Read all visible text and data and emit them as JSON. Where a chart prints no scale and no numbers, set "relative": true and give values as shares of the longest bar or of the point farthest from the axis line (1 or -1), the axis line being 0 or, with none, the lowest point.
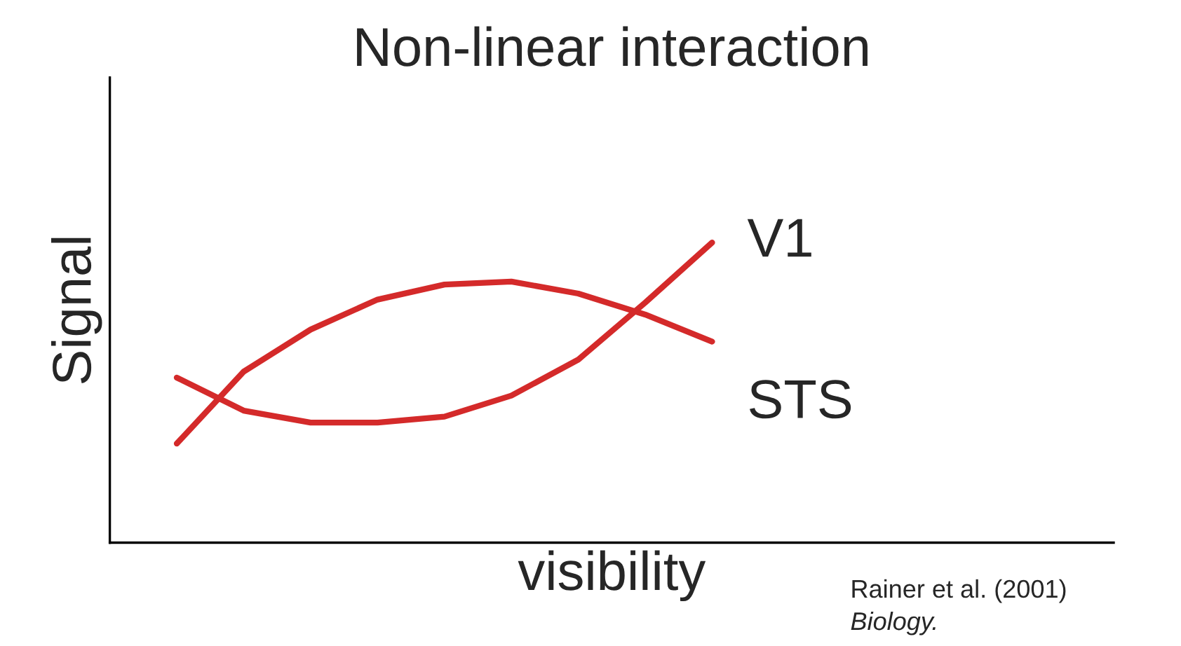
{
  "chart_data": {
    "type": "line",
    "title": "Non-linear interaction",
    "xlabel": "visibility",
    "ylabel": "Signal",
    "relative": true,
    "categories": [
      null,
      null,
      null,
      null,
      null,
      null,
      null,
      null,
      null
    ],
    "series": [
      {
        "name": "V1",
        "color": "#d42a2a",
        "values": [
          0.55,
          0.44,
          0.4,
          0.4,
          0.42,
          0.49,
          0.61,
          0.8,
          1.0
        ]
      },
      {
        "name": "STS",
        "color": "#d42a2a",
        "values": [
          0.33,
          0.57,
          0.71,
          0.81,
          0.86,
          0.87,
          0.83,
          0.76,
          0.67
        ]
      }
    ],
    "annotations": [
      "Rainer et al. (2001)",
      "Biology."
    ],
    "marker": "none",
    "line_style": "solid"
  }
}
